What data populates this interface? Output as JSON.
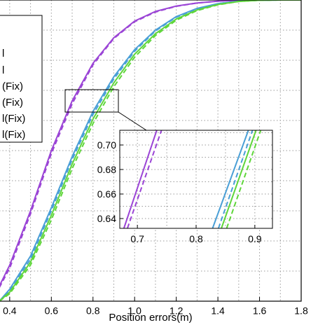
{
  "chart_data": [
    {
      "type": "line",
      "xlabel": "Position errors(m)",
      "ylabel": "",
      "xlim": [
        0.35,
        1.8
      ],
      "ylim": [
        0.0,
        1.0
      ],
      "x_ticks": [
        "0.4",
        "0.6",
        "0.8",
        "1.0",
        "1.2",
        "1.4",
        "1.6",
        "1.8"
      ],
      "grid": true,
      "legend": {
        "placement": "top-left",
        "entries": [
          "l",
          "l",
          "(Fix)",
          "(Fix)",
          "l(Fix)",
          "l(Fix)"
        ]
      },
      "series": [
        {
          "color": "#9b45d6",
          "dash": "solid",
          "x": [
            0.35,
            0.4,
            0.5,
            0.6,
            0.7,
            0.8,
            0.9,
            1.0,
            1.1,
            1.2,
            1.3,
            1.4,
            1.5,
            1.6,
            1.7,
            1.8
          ],
          "y": [
            0.05,
            0.12,
            0.3,
            0.5,
            0.665,
            0.79,
            0.875,
            0.93,
            0.962,
            0.98,
            0.99,
            0.996,
            0.999,
            1.0,
            1.0,
            1.0
          ]
        },
        {
          "color": "#9b45d6",
          "dash": "dashed",
          "x": [
            0.35,
            0.4,
            0.5,
            0.6,
            0.7,
            0.8,
            0.9,
            1.0,
            1.1,
            1.2,
            1.3,
            1.4,
            1.5,
            1.6,
            1.7,
            1.8
          ],
          "y": [
            0.045,
            0.11,
            0.29,
            0.49,
            0.655,
            0.785,
            0.872,
            0.928,
            0.96,
            0.979,
            0.99,
            0.996,
            0.999,
            1.0,
            1.0,
            1.0
          ]
        },
        {
          "color": "#4a9fd6",
          "dash": "solid",
          "x": [
            0.35,
            0.4,
            0.5,
            0.6,
            0.7,
            0.8,
            0.9,
            1.0,
            1.1,
            1.2,
            1.3,
            1.4,
            1.5,
            1.6,
            1.7,
            1.8
          ],
          "y": [
            0.0,
            0.04,
            0.15,
            0.31,
            0.48,
            0.63,
            0.745,
            0.835,
            0.9,
            0.945,
            0.972,
            0.988,
            0.996,
            0.999,
            1.0,
            1.0
          ]
        },
        {
          "color": "#4a9fd6",
          "dash": "dashed",
          "x": [
            0.35,
            0.4,
            0.5,
            0.6,
            0.7,
            0.8,
            0.9,
            1.0,
            1.1,
            1.2,
            1.3,
            1.4,
            1.5,
            1.6,
            1.7,
            1.8
          ],
          "y": [
            0.0,
            0.035,
            0.14,
            0.3,
            0.47,
            0.62,
            0.738,
            0.83,
            0.897,
            0.943,
            0.971,
            0.988,
            0.996,
            0.999,
            1.0,
            1.0
          ]
        },
        {
          "color": "#5fd63a",
          "dash": "solid",
          "x": [
            0.35,
            0.4,
            0.5,
            0.6,
            0.7,
            0.8,
            0.9,
            1.0,
            1.1,
            1.2,
            1.3,
            1.4,
            1.5,
            1.6,
            1.7,
            1.8
          ],
          "y": [
            0.0,
            0.03,
            0.13,
            0.285,
            0.455,
            0.605,
            0.725,
            0.82,
            0.888,
            0.937,
            0.967,
            0.985,
            0.995,
            0.999,
            1.0,
            1.0
          ]
        },
        {
          "color": "#5fd63a",
          "dash": "dashed",
          "x": [
            0.35,
            0.4,
            0.5,
            0.6,
            0.7,
            0.8,
            0.9,
            1.0,
            1.1,
            1.2,
            1.3,
            1.4,
            1.5,
            1.6,
            1.7,
            1.8
          ],
          "y": [
            0.0,
            0.025,
            0.12,
            0.27,
            0.44,
            0.59,
            0.712,
            0.81,
            0.882,
            0.933,
            0.965,
            0.984,
            0.995,
            0.999,
            1.0,
            1.0
          ]
        }
      ]
    },
    {
      "type": "line",
      "xlim": [
        0.67,
        0.93
      ],
      "ylim": [
        0.632,
        0.712
      ],
      "x_ticks": [
        "0.7",
        "0.8",
        "0.9"
      ],
      "y_ticks": [
        "0.64",
        "0.66",
        "0.68",
        "0.70"
      ],
      "grid": true,
      "series": [
        {
          "color": "#9b45d6",
          "dash": "solid",
          "x": [
            0.677,
            0.733
          ],
          "y": [
            0.632,
            0.712
          ]
        },
        {
          "color": "#9b45d6",
          "dash": "dashed",
          "x": [
            0.683,
            0.741
          ],
          "y": [
            0.632,
            0.712
          ]
        },
        {
          "color": "#4a9fd6",
          "dash": "solid",
          "x": [
            0.828,
            0.889
          ],
          "y": [
            0.632,
            0.712
          ]
        },
        {
          "color": "#4a9fd6",
          "dash": "dashed",
          "x": [
            0.838,
            0.896
          ],
          "y": [
            0.632,
            0.712
          ]
        },
        {
          "color": "#5fd63a",
          "dash": "solid",
          "x": [
            0.843,
            0.902
          ],
          "y": [
            0.632,
            0.712
          ]
        },
        {
          "color": "#5fd63a",
          "dash": "dashed",
          "x": [
            0.852,
            0.91
          ],
          "y": [
            0.632,
            0.712
          ]
        }
      ]
    }
  ]
}
